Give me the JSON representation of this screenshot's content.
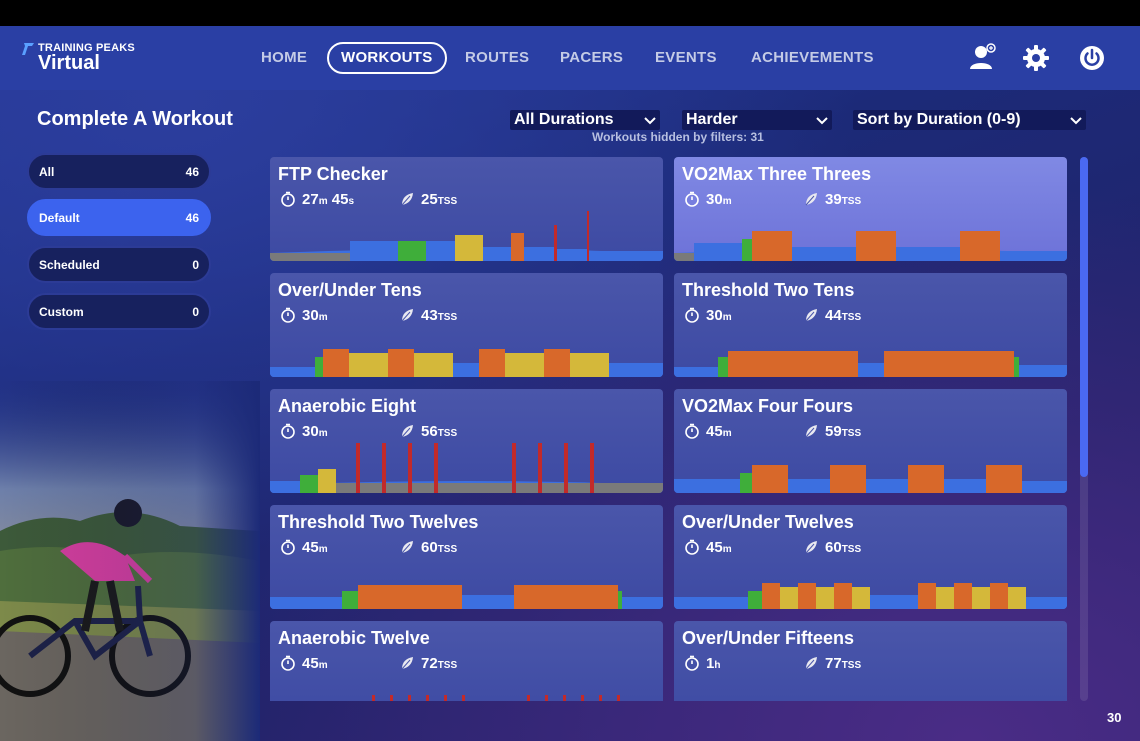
{
  "app": {
    "logo_top": "TRAINING PEAKS",
    "logo_bottom": "Virtual"
  },
  "nav": {
    "items": [
      {
        "label": "HOME",
        "active": false
      },
      {
        "label": "WORKOUTS",
        "active": true
      },
      {
        "label": "ROUTES",
        "active": false
      },
      {
        "label": "PACERS",
        "active": false
      },
      {
        "label": "EVENTS",
        "active": false
      },
      {
        "label": "ACHIEVEMENTS",
        "active": false
      }
    ],
    "icons": [
      "profile-icon",
      "gear-icon",
      "power-icon"
    ]
  },
  "page": {
    "title": "Complete A Workout",
    "page_number": "30"
  },
  "filters_bar": {
    "duration": "All Durations",
    "difficulty": "Harder",
    "sort": "Sort by Duration (0-9)",
    "hidden_note": "Workouts hidden by filters: 31"
  },
  "categories": [
    {
      "label": "All",
      "count": "46",
      "active": false
    },
    {
      "label": "Default",
      "count": "46",
      "active": true
    },
    {
      "label": "Scheduled",
      "count": "0",
      "active": false
    },
    {
      "label": "Custom",
      "count": "0",
      "active": false
    }
  ],
  "tss_unit": "TSS",
  "workouts": [
    {
      "title": "FTP Checker",
      "time_main": "27",
      "time_unit": "m",
      "time_extra": " 45",
      "time_extra_unit": "s",
      "tss": "25",
      "selected": false
    },
    {
      "title": "VO2Max Three Threes",
      "time_main": "30",
      "time_unit": "m",
      "time_extra": "",
      "time_extra_unit": "",
      "tss": "39",
      "selected": true
    },
    {
      "title": "Over/Under Tens",
      "time_main": "30",
      "time_unit": "m",
      "time_extra": "",
      "time_extra_unit": "",
      "tss": "43",
      "selected": false
    },
    {
      "title": "Threshold Two Tens",
      "time_main": "30",
      "time_unit": "m",
      "time_extra": "",
      "time_extra_unit": "",
      "tss": "44",
      "selected": false
    },
    {
      "title": "Anaerobic Eight",
      "time_main": "30",
      "time_unit": "m",
      "time_extra": "",
      "time_extra_unit": "",
      "tss": "56",
      "selected": false
    },
    {
      "title": "VO2Max Four Fours",
      "time_main": "45",
      "time_unit": "m",
      "time_extra": "",
      "time_extra_unit": "",
      "tss": "59",
      "selected": false
    },
    {
      "title": "Threshold Two Twelves",
      "time_main": "45",
      "time_unit": "m",
      "time_extra": "",
      "time_extra_unit": "",
      "tss": "60",
      "selected": false
    },
    {
      "title": "Over/Under Twelves",
      "time_main": "45",
      "time_unit": "m",
      "time_extra": "",
      "time_extra_unit": "",
      "tss": "60",
      "selected": false
    },
    {
      "title": "Anaerobic Twelve",
      "time_main": "45",
      "time_unit": "m",
      "time_extra": "",
      "time_extra_unit": "",
      "tss": "72",
      "selected": false
    },
    {
      "title": "Over/Under Fifteens",
      "time_main": "1",
      "time_unit": "h",
      "time_extra": "",
      "time_extra_unit": "",
      "tss": "77",
      "selected": false
    }
  ],
  "colors": {
    "nav_bg": "#2a3fa4",
    "active_filter": "#3c63ee",
    "card_bg": "#4a56aa",
    "card_selected": "#7a80e0",
    "zone_blue": "#3c6fe0",
    "zone_green": "#3fae3a",
    "zone_yellow": "#d4b83a",
    "zone_orange": "#d8682a",
    "zone_red": "#c22a2a",
    "zone_gray": "#7a7a7a"
  }
}
